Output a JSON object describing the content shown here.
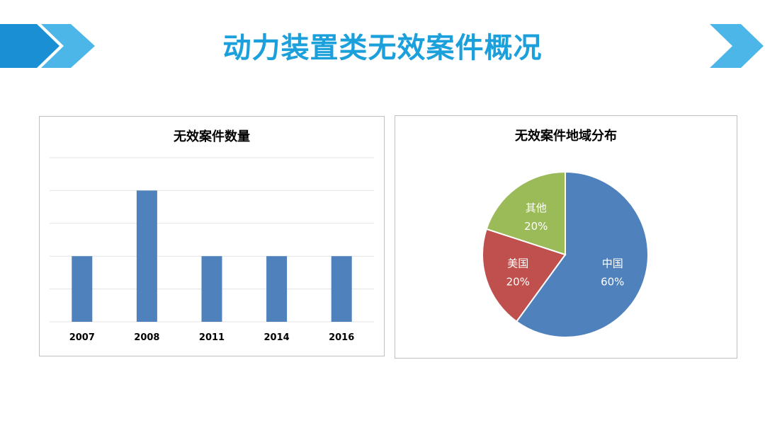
{
  "slide": {
    "title": "动力装置类无效案件概况",
    "title_color": "#1ba0dc",
    "chevron_colors": [
      "#4db6e8",
      "#1b8fd4"
    ]
  },
  "chart_data": [
    {
      "type": "bar",
      "title": "无效案件数量",
      "categories": [
        "2007",
        "2008",
        "2011",
        "2014",
        "2016"
      ],
      "values": [
        2,
        4,
        2,
        2,
        2
      ],
      "ylim": [
        0,
        5
      ],
      "grid": true,
      "bar_color": "#4f81bd",
      "xlabel": "",
      "ylabel": ""
    },
    {
      "type": "pie",
      "title": "无效案件地域分布",
      "slices": [
        {
          "label": "中国",
          "percent_label": "60%",
          "value": 60,
          "color": "#4f81bd"
        },
        {
          "label": "美国",
          "percent_label": "20%",
          "value": 20,
          "color": "#c0504d"
        },
        {
          "label": "其他",
          "percent_label": "20%",
          "value": 20,
          "color": "#9bbb59"
        }
      ]
    }
  ]
}
